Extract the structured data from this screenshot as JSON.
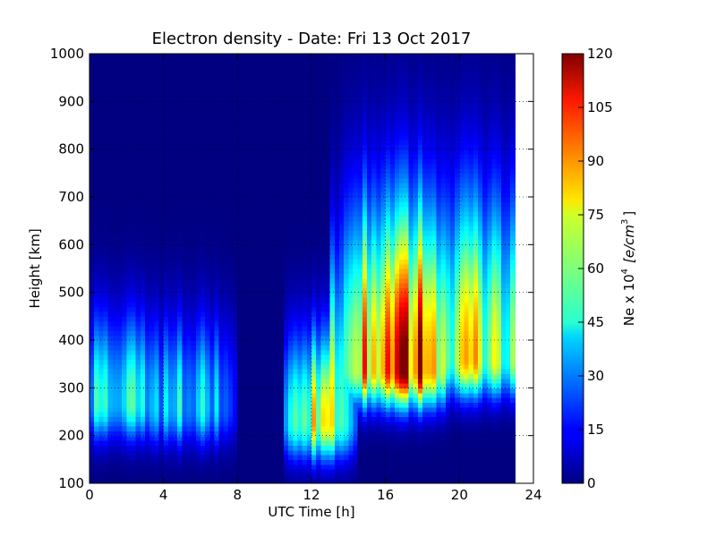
{
  "chart_data": {
    "type": "heatmap",
    "title": "Electron density - Date: Fri 13 Oct 2017",
    "xlabel": "UTC Time [h]",
    "ylabel": "Height [km]",
    "xlim": [
      0,
      24
    ],
    "ylim": [
      100,
      1000
    ],
    "xticks": [
      "0",
      "4",
      "8",
      "12",
      "16",
      "20",
      "24"
    ],
    "yticks": [
      "100",
      "200",
      "300",
      "400",
      "500",
      "600",
      "700",
      "800",
      "900",
      "1000"
    ],
    "grid": true,
    "data_end_hour": 23,
    "colorbar": {
      "label_prefix": "Ne x 10",
      "label_exp": "4",
      "label_unit": "[e/cm",
      "label_unit_exp": "3",
      "label_close": "]",
      "range": [
        0,
        120
      ],
      "ticks": [
        "0",
        "15",
        "30",
        "45",
        "60",
        "75",
        "90",
        "105",
        "120"
      ],
      "colormap": "jet"
    },
    "density_features": [
      {
        "time_range": [
          0,
          3
        ],
        "peak_height_km": 270,
        "peak_value": 55
      },
      {
        "time_range": [
          3,
          7.5
        ],
        "peak_height_km": 260,
        "peak_value": 45
      },
      {
        "time_range": [
          11,
          14
        ],
        "peak_height_km": 230,
        "peak_value": 75
      },
      {
        "time_range": [
          14,
          19
        ],
        "peak_height_km": 340,
        "peak_value": 118
      },
      {
        "time_range": [
          19,
          23
        ],
        "peak_height_km": 360,
        "peak_value": 80
      }
    ]
  }
}
